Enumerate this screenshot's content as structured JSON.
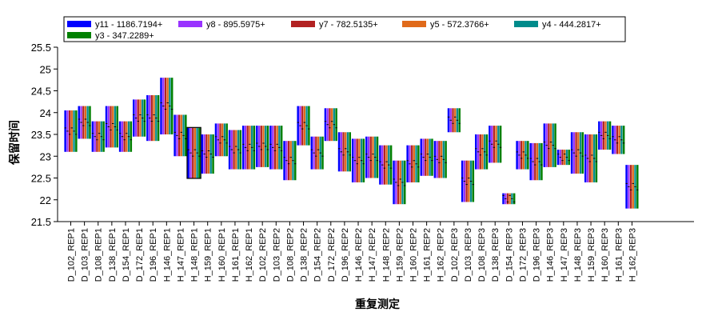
{
  "chart_data": {
    "type": "box",
    "ylabel": "保留时间",
    "xlabel": "重复测定",
    "ylim": [
      21.5,
      25.5
    ],
    "yticks": [
      21.5,
      22,
      22.5,
      23,
      23.5,
      24,
      24.5,
      25,
      25.5
    ],
    "legend_placement": "top",
    "series": [
      {
        "name": "y11 - 1186.7194+",
        "color": "#0000ff"
      },
      {
        "name": "y8 - 895.5975+",
        "color": "#9933ff"
      },
      {
        "name": "y7 - 782.5135+",
        "color": "#b22222"
      },
      {
        "name": "y5 - 572.3766+",
        "color": "#e06a1a"
      },
      {
        "name": "y4 - 444.2817+",
        "color": "#008b8b"
      },
      {
        "name": "y3 - 347.2289+",
        "color": "#008000"
      }
    ],
    "categories": [
      "D_102_REP1",
      "D_103_REP1",
      "D_108_REP1",
      "D_138_REP1",
      "D_154_REP1",
      "D_172_REP1",
      "D_196_REP1",
      "H_146_REP1",
      "H_147_REP1",
      "H_148_REP1",
      "H_159_REP1",
      "H_160_REP1",
      "H_161_REP1",
      "H_162_REP1",
      "D_102_REP2",
      "D_103_REP2",
      "D_108_REP2",
      "D_138_REP2",
      "D_154_REP2",
      "D_172_REP2",
      "D_196_REP2",
      "H_146_REP2",
      "H_147_REP2",
      "H_148_REP2",
      "H_159_REP2",
      "H_160_REP2",
      "H_161_REP2",
      "H_162_REP2",
      "D_102_REP3",
      "D_103_REP3",
      "D_108_REP3",
      "D_138_REP3",
      "D_154_REP3",
      "D_172_REP3",
      "D_196_REP3",
      "H_146_REP3",
      "H_147_REP3",
      "H_148_REP3",
      "H_159_REP3",
      "H_160_REP3",
      "H_161_REP3",
      "H_162_REP3"
    ],
    "ranges": [
      {
        "min": 23.1,
        "max": 24.05,
        "highlighted": false
      },
      {
        "min": 23.4,
        "max": 24.15,
        "highlighted": false
      },
      {
        "min": 23.1,
        "max": 23.8,
        "highlighted": false
      },
      {
        "min": 23.2,
        "max": 24.15,
        "highlighted": false
      },
      {
        "min": 23.1,
        "max": 23.8,
        "highlighted": false
      },
      {
        "min": 23.45,
        "max": 24.3,
        "highlighted": false
      },
      {
        "min": 23.35,
        "max": 24.4,
        "highlighted": false
      },
      {
        "min": 23.5,
        "max": 24.8,
        "highlighted": false
      },
      {
        "min": 23.0,
        "max": 23.95,
        "highlighted": false
      },
      {
        "min": 22.5,
        "max": 23.65,
        "highlighted": true
      },
      {
        "min": 22.6,
        "max": 23.5,
        "highlighted": false
      },
      {
        "min": 23.0,
        "max": 23.75,
        "highlighted": false
      },
      {
        "min": 22.7,
        "max": 23.6,
        "highlighted": false
      },
      {
        "min": 22.7,
        "max": 23.7,
        "highlighted": false
      },
      {
        "min": 22.75,
        "max": 23.7,
        "highlighted": false
      },
      {
        "min": 22.7,
        "max": 23.7,
        "highlighted": false
      },
      {
        "min": 22.45,
        "max": 23.35,
        "highlighted": false
      },
      {
        "min": 23.25,
        "max": 24.15,
        "highlighted": false
      },
      {
        "min": 22.7,
        "max": 23.45,
        "highlighted": false
      },
      {
        "min": 23.35,
        "max": 24.1,
        "highlighted": false
      },
      {
        "min": 22.65,
        "max": 23.55,
        "highlighted": false
      },
      {
        "min": 22.4,
        "max": 23.4,
        "highlighted": false
      },
      {
        "min": 22.5,
        "max": 23.45,
        "highlighted": false
      },
      {
        "min": 22.35,
        "max": 23.25,
        "highlighted": false
      },
      {
        "min": 21.9,
        "max": 22.9,
        "highlighted": false
      },
      {
        "min": 22.4,
        "max": 23.25,
        "highlighted": false
      },
      {
        "min": 22.55,
        "max": 23.4,
        "highlighted": false
      },
      {
        "min": 22.5,
        "max": 23.35,
        "highlighted": false
      },
      {
        "min": 23.55,
        "max": 24.1,
        "highlighted": false
      },
      {
        "min": 21.95,
        "max": 22.9,
        "highlighted": false
      },
      {
        "min": 22.7,
        "max": 23.5,
        "highlighted": false
      },
      {
        "min": 22.85,
        "max": 23.7,
        "highlighted": false
      },
      {
        "min": 21.9,
        "max": 22.15,
        "highlighted": false
      },
      {
        "min": 22.7,
        "max": 23.35,
        "highlighted": false
      },
      {
        "min": 22.45,
        "max": 23.3,
        "highlighted": false
      },
      {
        "min": 22.75,
        "max": 23.75,
        "highlighted": false
      },
      {
        "min": 22.8,
        "max": 23.15,
        "highlighted": false
      },
      {
        "min": 22.6,
        "max": 23.55,
        "highlighted": false
      },
      {
        "min": 22.4,
        "max": 23.5,
        "highlighted": false
      },
      {
        "min": 23.15,
        "max": 23.8,
        "highlighted": false
      },
      {
        "min": 23.05,
        "max": 23.7,
        "highlighted": false
      },
      {
        "min": 21.8,
        "max": 22.8,
        "highlighted": false
      }
    ]
  }
}
